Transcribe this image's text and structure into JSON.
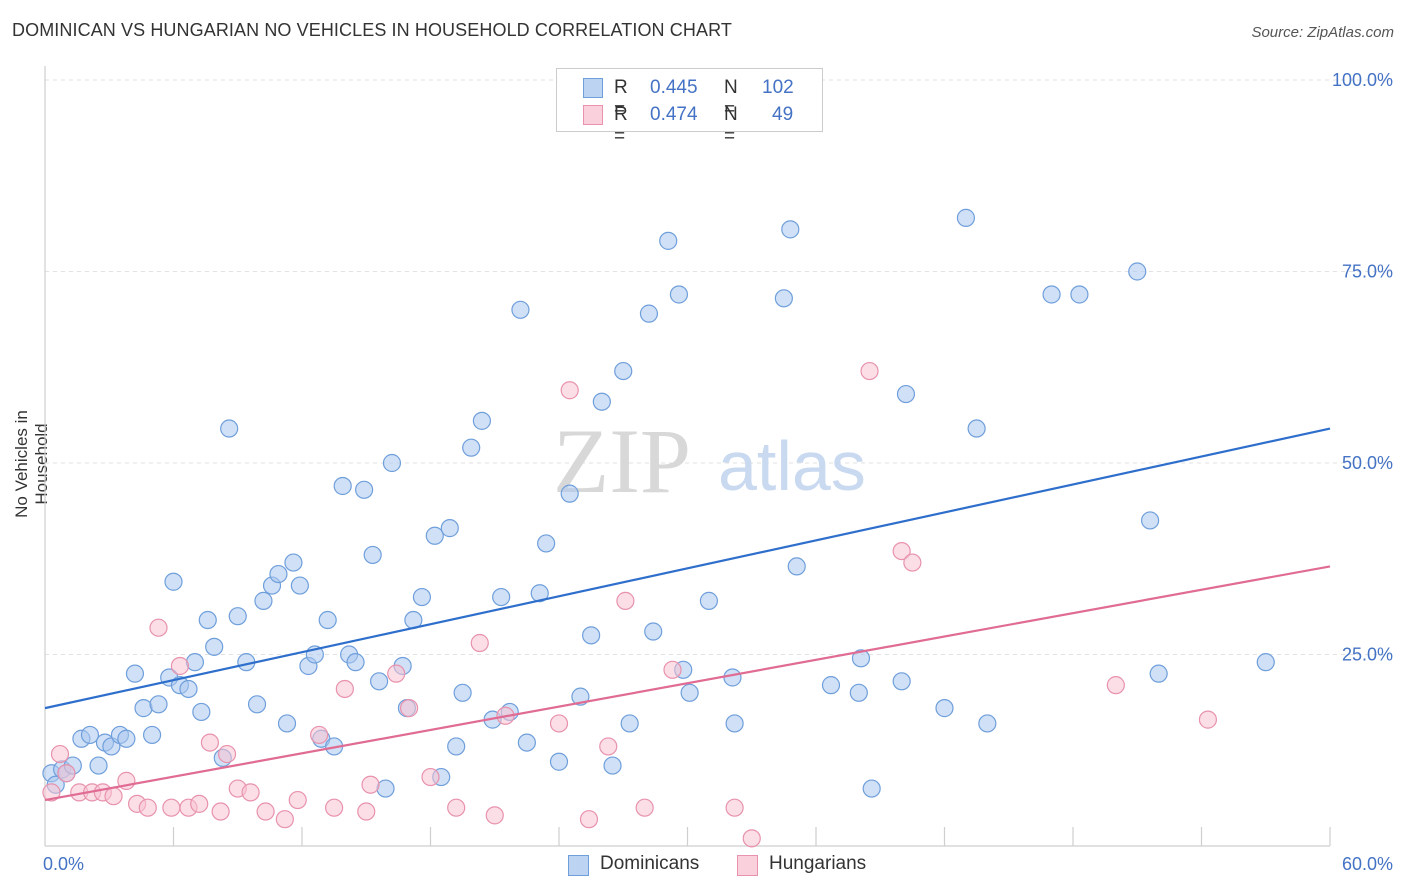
{
  "title": "DOMINICAN VS HUNGARIAN NO VEHICLES IN HOUSEHOLD CORRELATION CHART",
  "source": "Source: ZipAtlas.com",
  "watermark": {
    "zip": "ZIP",
    "atlas": "atlas"
  },
  "legend_top": {
    "rows": [
      {
        "r_label": "R =",
        "r_value": "0.445",
        "n_label": "N =",
        "n_value": "102"
      },
      {
        "r_label": "R =",
        "r_value": "0.474",
        "n_label": "N =",
        "n_value": "49"
      }
    ]
  },
  "legend_bottom": {
    "items": [
      "Dominicans",
      "Hungarians"
    ]
  },
  "colors": {
    "blue_fill": "#a9c6ee",
    "blue_stroke": "#6f9fdb",
    "blue_line": "#2f6fcc",
    "pink_fill": "#f7c3d2",
    "pink_stroke": "#e892ad",
    "pink_line": "#e06b93",
    "tick_label": "#4472C4",
    "grid": "#e2e2e2"
  },
  "chart_data": {
    "type": "scatter",
    "title": "DOMINICAN VS HUNGARIAN NO VEHICLES IN HOUSEHOLD CORRELATION CHART",
    "xlabel": "",
    "ylabel": "No Vehicles in Household",
    "xlim": [
      0,
      60
    ],
    "ylim": [
      0,
      100
    ],
    "x_tick_labels": [
      "0.0%",
      "60.0%"
    ],
    "y_ticks": [
      25,
      50,
      75,
      100
    ],
    "y_tick_labels": [
      "25.0%",
      "50.0%",
      "75.0%",
      "100.0%"
    ],
    "legend_placement": "top-center",
    "grid": true,
    "series": [
      {
        "name": "Dominicans",
        "r": 0.445,
        "n": 102,
        "trend": {
          "x": [
            0,
            60
          ],
          "y": [
            18.0,
            54.5
          ]
        },
        "points": [
          [
            0.3,
            9.5
          ],
          [
            0.5,
            8.0
          ],
          [
            0.8,
            10.0
          ],
          [
            1.0,
            9.5
          ],
          [
            1.3,
            10.5
          ],
          [
            1.7,
            14.0
          ],
          [
            2.1,
            14.5
          ],
          [
            2.5,
            10.5
          ],
          [
            2.8,
            13.5
          ],
          [
            3.1,
            13.0
          ],
          [
            3.5,
            14.5
          ],
          [
            3.8,
            14.0
          ],
          [
            4.2,
            22.5
          ],
          [
            4.6,
            18.0
          ],
          [
            5.0,
            14.5
          ],
          [
            5.3,
            18.5
          ],
          [
            5.8,
            22.0
          ],
          [
            6.0,
            34.5
          ],
          [
            6.3,
            21.0
          ],
          [
            6.7,
            20.5
          ],
          [
            7.0,
            24.0
          ],
          [
            7.3,
            17.5
          ],
          [
            7.6,
            29.5
          ],
          [
            7.9,
            26.0
          ],
          [
            8.3,
            11.5
          ],
          [
            8.6,
            54.5
          ],
          [
            9.0,
            30.0
          ],
          [
            9.4,
            24.0
          ],
          [
            9.9,
            18.5
          ],
          [
            10.2,
            32.0
          ],
          [
            10.6,
            34.0
          ],
          [
            10.9,
            35.5
          ],
          [
            11.3,
            16.0
          ],
          [
            11.6,
            37.0
          ],
          [
            11.9,
            34.0
          ],
          [
            12.3,
            23.5
          ],
          [
            12.6,
            25.0
          ],
          [
            12.9,
            14.0
          ],
          [
            13.2,
            29.5
          ],
          [
            13.5,
            13.0
          ],
          [
            13.9,
            47.0
          ],
          [
            14.2,
            25.0
          ],
          [
            14.5,
            24.0
          ],
          [
            14.9,
            46.5
          ],
          [
            15.3,
            38.0
          ],
          [
            15.6,
            21.5
          ],
          [
            15.9,
            7.5
          ],
          [
            16.2,
            50.0
          ],
          [
            16.7,
            23.5
          ],
          [
            16.9,
            18.0
          ],
          [
            17.2,
            29.5
          ],
          [
            17.6,
            32.5
          ],
          [
            18.2,
            40.5
          ],
          [
            18.5,
            9.0
          ],
          [
            18.9,
            41.5
          ],
          [
            19.2,
            13.0
          ],
          [
            19.5,
            20.0
          ],
          [
            19.9,
            52.0
          ],
          [
            20.4,
            55.5
          ],
          [
            20.9,
            16.5
          ],
          [
            21.3,
            32.5
          ],
          [
            21.7,
            17.5
          ],
          [
            22.2,
            70.0
          ],
          [
            22.5,
            13.5
          ],
          [
            23.1,
            33.0
          ],
          [
            23.4,
            39.5
          ],
          [
            24.0,
            11.0
          ],
          [
            24.5,
            46.0
          ],
          [
            25.0,
            19.5
          ],
          [
            25.5,
            27.5
          ],
          [
            26.0,
            58.0
          ],
          [
            26.5,
            10.5
          ],
          [
            27.0,
            62.0
          ],
          [
            27.3,
            16.0
          ],
          [
            28.2,
            69.5
          ],
          [
            28.4,
            28.0
          ],
          [
            29.1,
            79.0
          ],
          [
            29.6,
            72.0
          ],
          [
            29.8,
            23.0
          ],
          [
            30.1,
            20.0
          ],
          [
            31.0,
            32.0
          ],
          [
            32.1,
            22.0
          ],
          [
            32.2,
            16.0
          ],
          [
            34.5,
            71.5
          ],
          [
            34.8,
            80.5
          ],
          [
            35.1,
            36.5
          ],
          [
            36.7,
            21.0
          ],
          [
            38.0,
            20.0
          ],
          [
            38.1,
            24.5
          ],
          [
            38.6,
            7.5
          ],
          [
            40.0,
            21.5
          ],
          [
            40.2,
            59.0
          ],
          [
            42.0,
            18.0
          ],
          [
            43.0,
            82.0
          ],
          [
            43.5,
            54.5
          ],
          [
            44.0,
            16.0
          ],
          [
            47.0,
            72.0
          ],
          [
            48.3,
            72.0
          ],
          [
            51.0,
            75.0
          ],
          [
            51.6,
            42.5
          ],
          [
            52.0,
            22.5
          ],
          [
            57.0,
            24.0
          ]
        ]
      },
      {
        "name": "Hungarians",
        "r": 0.474,
        "n": 49,
        "trend": {
          "x": [
            0,
            60
          ],
          "y": [
            6.0,
            36.5
          ]
        },
        "points": [
          [
            0.3,
            7.0
          ],
          [
            0.7,
            12.0
          ],
          [
            1.0,
            9.5
          ],
          [
            1.6,
            7.0
          ],
          [
            2.2,
            7.0
          ],
          [
            2.7,
            7.0
          ],
          [
            3.2,
            6.5
          ],
          [
            3.8,
            8.5
          ],
          [
            4.3,
            5.5
          ],
          [
            4.8,
            5.0
          ],
          [
            5.3,
            28.5
          ],
          [
            5.9,
            5.0
          ],
          [
            6.3,
            23.5
          ],
          [
            6.7,
            5.0
          ],
          [
            7.2,
            5.5
          ],
          [
            7.7,
            13.5
          ],
          [
            8.2,
            4.5
          ],
          [
            8.5,
            12.0
          ],
          [
            9.0,
            7.5
          ],
          [
            9.6,
            7.0
          ],
          [
            10.3,
            4.5
          ],
          [
            11.2,
            3.5
          ],
          [
            11.8,
            6.0
          ],
          [
            12.8,
            14.5
          ],
          [
            13.5,
            5.0
          ],
          [
            14.0,
            20.5
          ],
          [
            15.0,
            4.5
          ],
          [
            15.2,
            8.0
          ],
          [
            16.4,
            22.5
          ],
          [
            17.0,
            18.0
          ],
          [
            18.0,
            9.0
          ],
          [
            19.2,
            5.0
          ],
          [
            20.3,
            26.5
          ],
          [
            21.0,
            4.0
          ],
          [
            21.5,
            17.0
          ],
          [
            24.0,
            16.0
          ],
          [
            24.5,
            59.5
          ],
          [
            25.4,
            3.5
          ],
          [
            26.3,
            13.0
          ],
          [
            27.1,
            32.0
          ],
          [
            28.0,
            5.0
          ],
          [
            29.3,
            23.0
          ],
          [
            32.2,
            5.0
          ],
          [
            33.0,
            1.0
          ],
          [
            38.5,
            62.0
          ],
          [
            40.0,
            38.5
          ],
          [
            40.5,
            37.0
          ],
          [
            50.0,
            21.0
          ],
          [
            54.3,
            16.5
          ]
        ]
      }
    ]
  }
}
